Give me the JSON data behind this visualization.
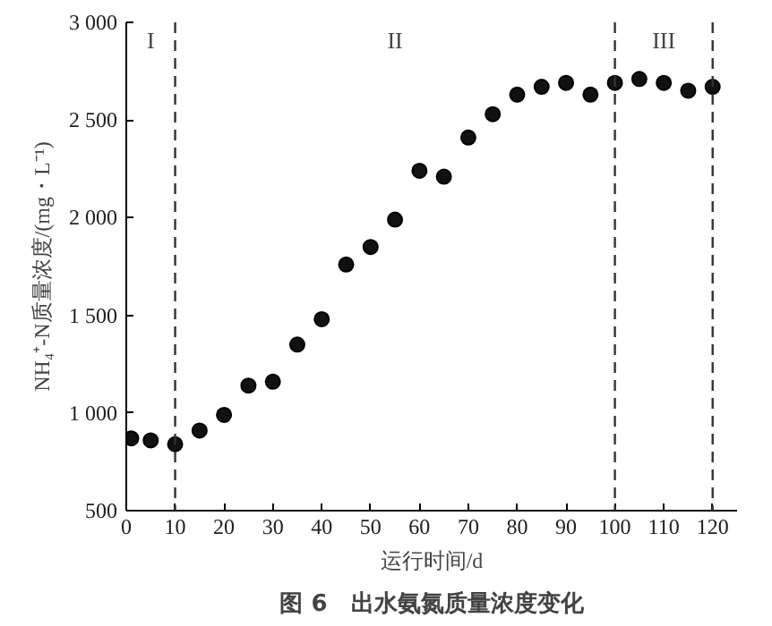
{
  "chart_data": {
    "type": "scatter",
    "title": "图 6　出水氨氮质量浓度变化",
    "xlabel": "运行时间/d",
    "ylabel": "NH₄⁺-N质量浓度/(mg・L⁻¹)",
    "x": [
      1,
      5,
      10,
      15,
      20,
      25,
      30,
      35,
      40,
      45,
      50,
      55,
      60,
      65,
      70,
      75,
      80,
      85,
      90,
      95,
      100,
      105,
      110,
      115,
      120
    ],
    "series": [
      {
        "color": "#111111",
        "values": [
          870,
          860,
          840,
          910,
          990,
          1140,
          1160,
          1350,
          1480,
          1760,
          1850,
          1990,
          2240,
          2210,
          2410,
          2530,
          2630,
          2670,
          2690,
          2630,
          2690,
          2710,
          2690,
          2650,
          2670
        ]
      }
    ],
    "marker": "circle",
    "grid": false,
    "xlim": [
      0,
      125
    ],
    "xticks": [
      0,
      10,
      20,
      30,
      40,
      50,
      60,
      70,
      80,
      90,
      100,
      110,
      120
    ],
    "ylim": [
      500,
      3000
    ],
    "yticks": [
      {
        "value": 500,
        "label": "500"
      },
      {
        "value": 1000,
        "label": "1 000"
      },
      {
        "value": 1500,
        "label": "1 500"
      },
      {
        "value": 2000,
        "label": "2 000"
      },
      {
        "value": 2500,
        "label": "2 500"
      },
      {
        "value": 3000,
        "label": "3 000"
      }
    ],
    "ref_lines": [
      {
        "axis": "x",
        "value": 10,
        "line_style": "dashed",
        "color": "#333333"
      },
      {
        "axis": "x",
        "value": 100,
        "line_style": "dashed",
        "color": "#333333"
      },
      {
        "axis": "x",
        "value": 120,
        "line_style": "dashed",
        "color": "#333333"
      }
    ],
    "annotations": [
      "I",
      "II",
      "III"
    ]
  }
}
